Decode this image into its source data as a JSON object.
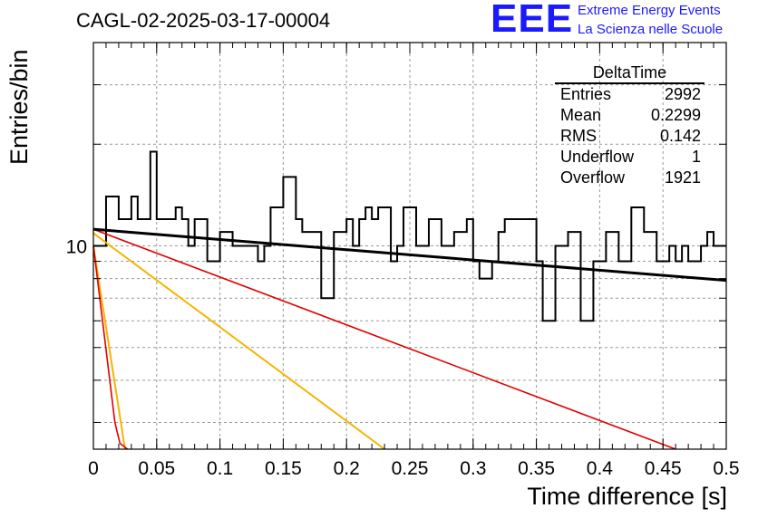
{
  "header": {
    "title": "CAGL-02-2025-03-17-00004",
    "logo_letters": "EEE",
    "logo_line1": "Extreme Energy Events",
    "logo_line2": "La Scienza nelle Scuole"
  },
  "stats": {
    "title": "DeltaTime",
    "rows": [
      {
        "label": "Entries",
        "value": "2992"
      },
      {
        "label": "Mean",
        "value": "0.2299"
      },
      {
        "label": "RMS",
        "value": "0.142"
      },
      {
        "label": "Underflow",
        "value": "1"
      },
      {
        "label": "Overflow",
        "value": "1921"
      }
    ]
  },
  "colors": {
    "histogram": "#000000",
    "fit": "#000000",
    "red_curve": "#e00000",
    "orange_curve": "#f5b400",
    "grid": "#999999"
  },
  "chart_data": {
    "type": "line",
    "xlabel": "Time difference [s]",
    "ylabel": "Entries/bin",
    "xlim": [
      0,
      0.5
    ],
    "ylim": [
      2.5,
      40
    ],
    "yscale": "log",
    "grid": true,
    "x_ticks": [
      "0",
      "0.05",
      "0.1",
      "0.15",
      "0.2",
      "0.25",
      "0.3",
      "0.35",
      "0.4",
      "0.45",
      "0.5"
    ],
    "y_ticks": [
      "10"
    ],
    "histogram": {
      "bin_width": 0.005,
      "values": [
        10,
        10,
        14,
        14,
        12,
        12,
        14,
        12,
        12,
        19,
        12,
        12,
        12,
        13,
        12,
        10,
        12,
        12,
        9,
        9,
        11,
        11,
        10,
        10,
        10,
        10,
        9,
        10,
        13,
        13,
        16,
        16,
        12,
        11,
        11,
        11,
        7,
        7,
        11,
        11,
        12,
        10,
        12,
        13,
        12,
        13,
        13,
        9,
        10,
        13,
        13,
        10,
        10,
        12,
        12,
        10,
        10,
        11,
        11,
        12,
        9,
        8,
        8,
        9,
        11,
        12,
        12,
        12,
        12,
        12,
        9,
        6,
        6,
        10,
        10,
        11,
        11,
        6,
        6,
        9,
        9,
        11,
        11,
        9,
        9,
        13,
        13,
        11,
        11,
        9,
        9,
        10,
        9,
        10,
        9,
        9,
        10,
        11,
        10,
        10
      ]
    },
    "fit_line": {
      "x": [
        0,
        0.5
      ],
      "y": [
        11.2,
        7.9
      ]
    },
    "red_curves": [
      {
        "x": [
          0,
          0.017,
          0.021,
          0.027
        ],
        "y": [
          10,
          3.0,
          2.6,
          2.5
        ]
      },
      {
        "x": [
          0,
          0.46
        ],
        "y": [
          11.2,
          2.5
        ]
      }
    ],
    "orange_curves": [
      {
        "x": [
          0,
          0.025
        ],
        "y": [
          10,
          2.5
        ]
      },
      {
        "x": [
          0,
          0.23
        ],
        "y": [
          10.9,
          2.5
        ]
      }
    ]
  }
}
